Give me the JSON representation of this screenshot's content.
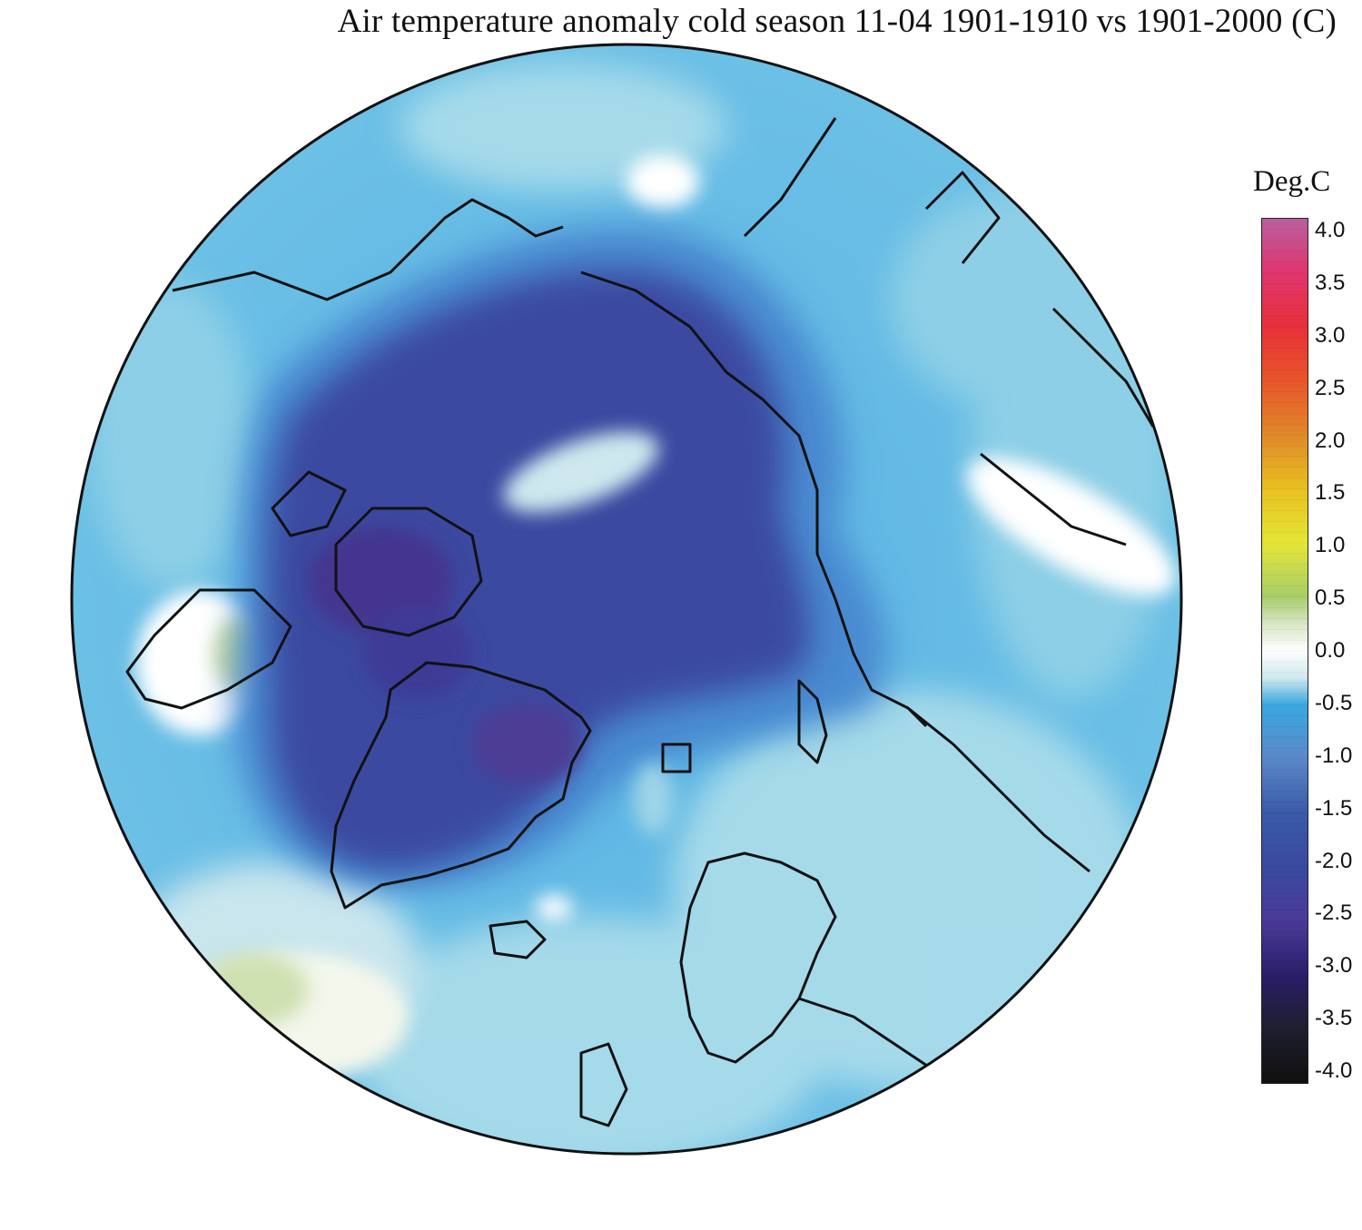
{
  "title": "Air temperature anomaly cold season 11-04 1901-1910 vs 1901-2000 (C)",
  "legend": {
    "title": "Deg.C",
    "ticks": [
      "4.0",
      "3.5",
      "3.0",
      "2.5",
      "2.0",
      "1.5",
      "1.0",
      "0.5",
      "0.0",
      "-0.5",
      "-1.0",
      "-1.5",
      "-2.0",
      "-2.5",
      "-3.0",
      "-3.5",
      "-4.0"
    ],
    "range": [
      -4.0,
      4.0
    ],
    "color_stops": [
      {
        "value": 4.0,
        "color": "#b8609e"
      },
      {
        "value": 3.5,
        "color": "#e0356e"
      },
      {
        "value": 3.0,
        "color": "#e8303a"
      },
      {
        "value": 2.5,
        "color": "#e8552a"
      },
      {
        "value": 2.0,
        "color": "#e0882a"
      },
      {
        "value": 1.5,
        "color": "#e8c020"
      },
      {
        "value": 1.0,
        "color": "#e6e635"
      },
      {
        "value": 0.5,
        "color": "#a8cc6a"
      },
      {
        "value": 0.25,
        "color": "#d8e6c4"
      },
      {
        "value": 0.0,
        "color": "#ffffff"
      },
      {
        "value": -0.25,
        "color": "#cfe8ee"
      },
      {
        "value": -0.5,
        "color": "#3aa8e0"
      },
      {
        "value": -1.0,
        "color": "#5a88c8"
      },
      {
        "value": -1.5,
        "color": "#3a5aa8"
      },
      {
        "value": -2.0,
        "color": "#3a4aa0"
      },
      {
        "value": -2.5,
        "color": "#4a3a98"
      },
      {
        "value": -3.0,
        "color": "#2a1e6a"
      },
      {
        "value": -3.5,
        "color": "#1e1e2e"
      },
      {
        "value": -4.0,
        "color": "#101010"
      }
    ]
  },
  "map": {
    "projection": "north polar stereographic",
    "colors": {
      "outline": "#111111",
      "background": "#ffffff"
    }
  }
}
